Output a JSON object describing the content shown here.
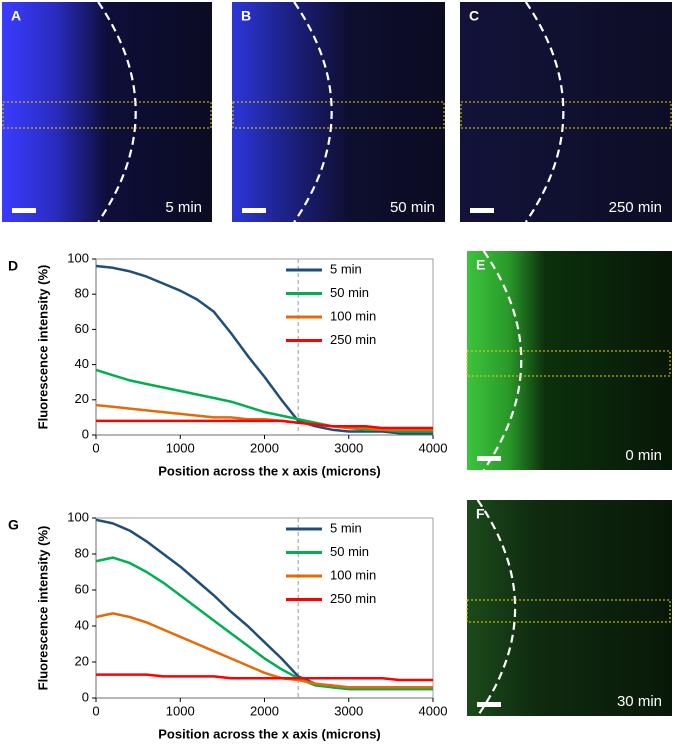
{
  "image_panels": [
    {
      "label": "A",
      "time": "5 min"
    },
    {
      "label": "B",
      "time": "50 min"
    },
    {
      "label": "C",
      "time": "250 min"
    },
    {
      "label": "E",
      "time": "0 min"
    },
    {
      "label": "F",
      "time": "30 min"
    }
  ],
  "chart_data": [
    {
      "type": "line",
      "label": "D",
      "xlabel": "Position across the x axis (microns)",
      "ylabel": "Fluorescence intensity (%)",
      "x": [
        0,
        200,
        400,
        600,
        800,
        1000,
        1200,
        1400,
        1600,
        1800,
        2000,
        2200,
        2400,
        2600,
        2800,
        3000,
        3200,
        3400,
        3600,
        3800,
        4000
      ],
      "series": [
        {
          "name": "5 min",
          "color": "#1f4e79",
          "values": [
            96,
            95,
            93,
            90,
            86,
            82,
            77,
            70,
            58,
            45,
            33,
            20,
            8,
            5,
            3,
            2,
            2,
            2,
            1,
            1,
            1
          ]
        },
        {
          "name": "50 min",
          "color": "#00b050",
          "values": [
            37,
            34,
            31,
            29,
            27,
            25,
            23,
            21,
            19,
            16,
            13,
            11,
            9,
            7,
            5,
            4,
            3,
            3,
            2,
            2,
            2
          ]
        },
        {
          "name": "100 min",
          "color": "#e36c09",
          "values": [
            17,
            16,
            15,
            14,
            13,
            12,
            11,
            10,
            10,
            9,
            9,
            8,
            7,
            6,
            5,
            4,
            4,
            3,
            3,
            3,
            3
          ]
        },
        {
          "name": "250 min",
          "color": "#ff0000",
          "values": [
            8,
            8,
            8,
            8,
            8,
            8,
            8,
            8,
            8,
            8,
            8,
            8,
            7,
            6,
            5,
            5,
            5,
            4,
            4,
            4,
            4
          ]
        }
      ],
      "xlim": [
        0,
        4000
      ],
      "xticks": [
        0,
        1000,
        2000,
        3000,
        4000
      ],
      "ylim": [
        0,
        100
      ],
      "yticks": [
        0,
        20,
        40,
        60,
        80,
        100
      ],
      "vline": 2400
    },
    {
      "type": "line",
      "label": "G",
      "xlabel": "Position across the x axis (microns)",
      "ylabel": "Fluorescence intensity (%)",
      "x": [
        0,
        200,
        400,
        600,
        800,
        1000,
        1200,
        1400,
        1600,
        1800,
        2000,
        2200,
        2400,
        2600,
        2800,
        3000,
        3200,
        3400,
        3600,
        3800,
        4000
      ],
      "series": [
        {
          "name": "5 min",
          "color": "#1f4e79",
          "values": [
            99,
            97,
            93,
            87,
            80,
            73,
            65,
            57,
            48,
            40,
            31,
            22,
            12,
            8,
            6,
            5,
            5,
            5,
            5,
            5,
            5
          ]
        },
        {
          "name": "50 min",
          "color": "#00b050",
          "values": [
            76,
            78,
            75,
            70,
            64,
            57,
            50,
            43,
            36,
            29,
            22,
            16,
            11,
            7,
            6,
            5,
            5,
            5,
            5,
            5,
            5
          ]
        },
        {
          "name": "100 min",
          "color": "#e36c09",
          "values": [
            45,
            47,
            45,
            42,
            38,
            34,
            30,
            26,
            22,
            18,
            14,
            11,
            10,
            8,
            7,
            6,
            6,
            6,
            6,
            6,
            6
          ]
        },
        {
          "name": "250 min",
          "color": "#ff0000",
          "values": [
            13,
            13,
            13,
            13,
            12,
            12,
            12,
            12,
            11,
            11,
            11,
            11,
            11,
            11,
            11,
            11,
            11,
            11,
            10,
            10,
            10
          ]
        }
      ],
      "xlim": [
        0,
        4000
      ],
      "xticks": [
        0,
        1000,
        2000,
        3000,
        4000
      ],
      "ylim": [
        0,
        100
      ],
      "yticks": [
        0,
        20,
        40,
        60,
        80,
        100
      ],
      "vline": 2400
    }
  ]
}
